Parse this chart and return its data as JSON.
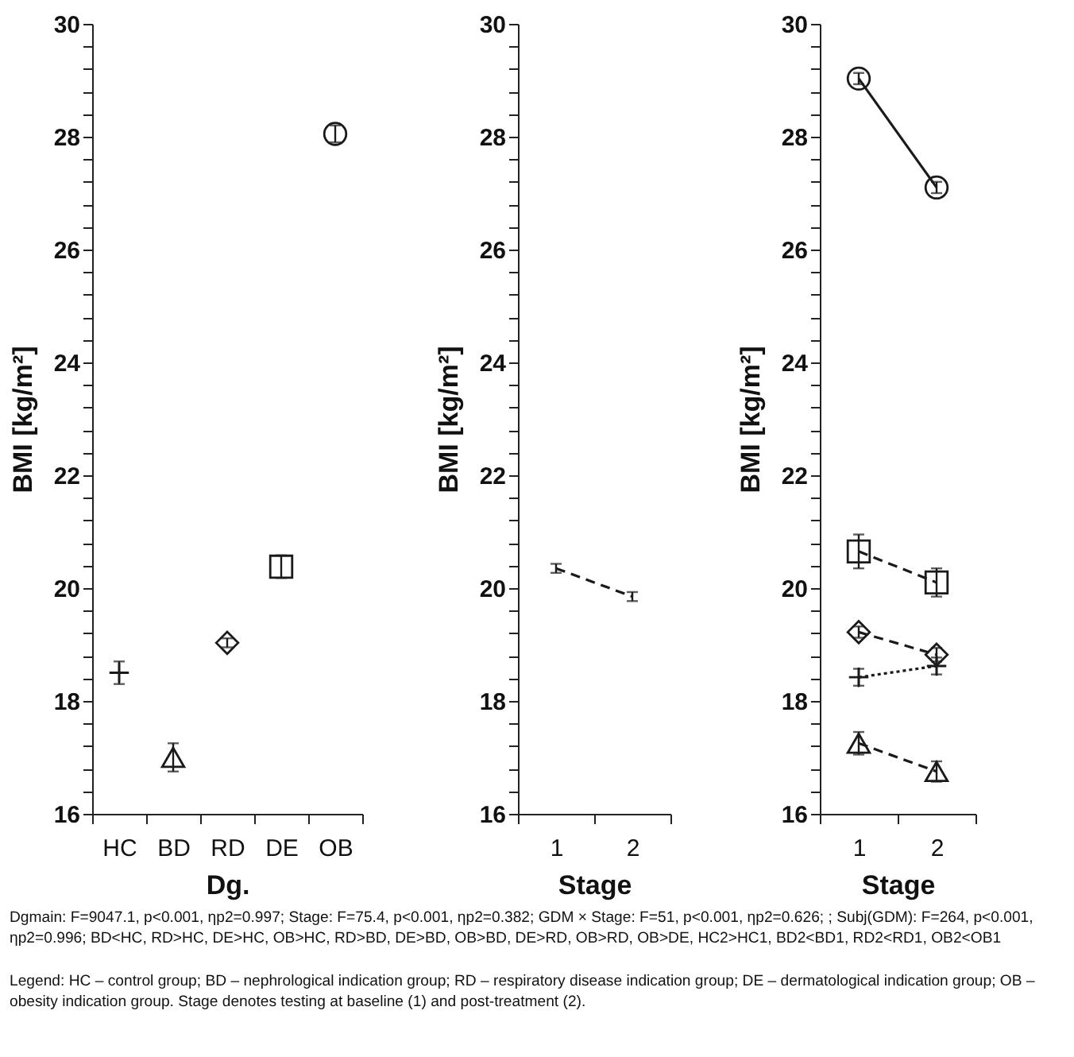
{
  "chart_data": [
    {
      "type": "scatter",
      "categories": [
        "HC",
        "BD",
        "RD",
        "DE",
        "OB"
      ],
      "xlabel": "Dg.",
      "ylabel": "BMI [kg/m²]",
      "ylim": [
        16,
        30
      ],
      "yticks": [
        16,
        {
          "value": 16.4,
          "label": null
        },
        {
          "value": 16.8,
          "label": null
        },
        {
          "value": 17.2,
          "label": null
        },
        {
          "value": 17.6,
          "label": null
        },
        18,
        {
          "value": 18.4,
          "label": null
        },
        {
          "value": 18.8,
          "label": null
        },
        {
          "value": 19.2,
          "label": null
        },
        {
          "value": 19.6,
          "label": null
        },
        20,
        {
          "value": 20.4,
          "label": null
        },
        {
          "value": 20.8,
          "label": null
        },
        {
          "value": 21.2,
          "label": null
        },
        {
          "value": 21.6,
          "label": null
        },
        22,
        {
          "value": 22.4,
          "label": null
        },
        {
          "value": 22.8,
          "label": null
        },
        {
          "value": 23.2,
          "label": null
        },
        {
          "value": 23.6,
          "label": null
        },
        24,
        {
          "value": 24.4,
          "label": null
        },
        {
          "value": 24.8,
          "label": null
        },
        {
          "value": 25.2,
          "label": null
        },
        {
          "value": 25.6,
          "label": null
        },
        26,
        {
          "value": 26.4,
          "label": null
        },
        {
          "value": 26.8,
          "label": null
        },
        {
          "value": 27.2,
          "label": null
        },
        {
          "value": 27.6,
          "label": null
        },
        28,
        {
          "value": 28.4,
          "label": null
        },
        {
          "value": 28.8,
          "label": null
        },
        {
          "value": 29.2,
          "label": null
        },
        {
          "value": 29.6,
          "label": null
        },
        30
      ],
      "series": [
        {
          "color": "#1a1a1a",
          "marker": "cross",
          "values": [
            18.5,
            null,
            null,
            null,
            null
          ],
          "errors": [
            0.2,
            null,
            null,
            null,
            null
          ]
        },
        {
          "color": "#1a1a1a",
          "marker": "triangle",
          "values": [
            null,
            17.0,
            null,
            null,
            null
          ],
          "errors": [
            null,
            0.25,
            null,
            null,
            null
          ]
        },
        {
          "color": "#1a1a1a",
          "marker": "diamond",
          "values": [
            null,
            null,
            19.03,
            null,
            null
          ],
          "errors": [
            null,
            null,
            0.08,
            null,
            null
          ]
        },
        {
          "color": "#1a1a1a",
          "marker": "square",
          "values": [
            null,
            null,
            null,
            20.38,
            null
          ],
          "errors": [
            null,
            null,
            null,
            0.2,
            null
          ]
        },
        {
          "color": "#1a1a1a",
          "marker": "circle",
          "values": [
            null,
            null,
            null,
            null,
            28.05
          ],
          "errors": [
            null,
            null,
            null,
            null,
            0.15
          ]
        }
      ],
      "annotations": [
        "Dgmain: F=9047.1, p<0.001, ηp2=0.997; Stage: F=75.4, p<0.001, ηp2=0.382; GDM × Stage: F=51, p<0.001, ηp2=0.626; ; Subj(GDM): F=264, p<0.001, ηp2=0.996; BD<HC, RD>HC, DE>HC, OB>HC, RD>BD, DE>BD, OB>BD, DE>RD, OB>RD, OB>DE, HC2>HC1, BD2<BD1, RD2<RD1, OB2<OB1",
        "Legend: HC – control group; BD – nephrological indication group; RD – respiratory disease indication group; DE – dermatological indication group; OB – obesity indication group. Stage denotes testing at baseline (1) and post-treatment (2)."
      ]
    },
    {
      "type": "line",
      "categories": [
        "1",
        "2"
      ],
      "xlabel": "Stage",
      "ylabel": "BMI [kg/m²]",
      "ylim": [
        16,
        30
      ],
      "yticks": [
        16,
        {
          "value": 16.4,
          "label": null
        },
        {
          "value": 16.8,
          "label": null
        },
        {
          "value": 17.2,
          "label": null
        },
        {
          "value": 17.6,
          "label": null
        },
        18,
        {
          "value": 18.4,
          "label": null
        },
        {
          "value": 18.8,
          "label": null
        },
        {
          "value": 19.2,
          "label": null
        },
        {
          "value": 19.6,
          "label": null
        },
        20,
        {
          "value": 20.4,
          "label": null
        },
        {
          "value": 20.8,
          "label": null
        },
        {
          "value": 21.2,
          "label": null
        },
        {
          "value": 21.6,
          "label": null
        },
        22,
        {
          "value": 22.4,
          "label": null
        },
        {
          "value": 22.8,
          "label": null
        },
        {
          "value": 23.2,
          "label": null
        },
        {
          "value": 23.6,
          "label": null
        },
        24,
        {
          "value": 24.4,
          "label": null
        },
        {
          "value": 24.8,
          "label": null
        },
        {
          "value": 25.2,
          "label": null
        },
        {
          "value": 25.6,
          "label": null
        },
        26,
        {
          "value": 26.4,
          "label": null
        },
        {
          "value": 26.8,
          "label": null
        },
        {
          "value": 27.2,
          "label": null
        },
        {
          "value": 27.6,
          "label": null
        },
        28,
        {
          "value": 28.4,
          "label": null
        },
        {
          "value": 28.8,
          "label": null
        },
        {
          "value": 29.2,
          "label": null
        },
        {
          "value": 29.6,
          "label": null
        },
        30
      ],
      "series": [
        {
          "color": "#1a1a1a",
          "marker": "none",
          "line_style": "dashed",
          "values": [
            20.35,
            19.85
          ],
          "errors": [
            0.08,
            0.08
          ]
        }
      ]
    },
    {
      "type": "line",
      "categories": [
        "1",
        "2"
      ],
      "xlabel": "Stage",
      "ylabel": "BMI [kg/m²]",
      "ylim": [
        16,
        30
      ],
      "yticks": [
        16,
        {
          "value": 16.4,
          "label": null
        },
        {
          "value": 16.8,
          "label": null
        },
        {
          "value": 17.2,
          "label": null
        },
        {
          "value": 17.6,
          "label": null
        },
        18,
        {
          "value": 18.4,
          "label": null
        },
        {
          "value": 18.8,
          "label": null
        },
        {
          "value": 19.2,
          "label": null
        },
        {
          "value": 19.6,
          "label": null
        },
        20,
        {
          "value": 20.4,
          "label": null
        },
        {
          "value": 20.8,
          "label": null
        },
        {
          "value": 21.2,
          "label": null
        },
        {
          "value": 21.6,
          "label": null
        },
        22,
        {
          "value": 22.4,
          "label": null
        },
        {
          "value": 22.8,
          "label": null
        },
        {
          "value": 23.2,
          "label": null
        },
        {
          "value": 23.6,
          "label": null
        },
        24,
        {
          "value": 24.4,
          "label": null
        },
        {
          "value": 24.8,
          "label": null
        },
        {
          "value": 25.2,
          "label": null
        },
        {
          "value": 25.6,
          "label": null
        },
        26,
        {
          "value": 26.4,
          "label": null
        },
        {
          "value": 26.8,
          "label": null
        },
        {
          "value": 27.2,
          "label": null
        },
        {
          "value": 27.6,
          "label": null
        },
        28,
        {
          "value": 28.4,
          "label": null
        },
        {
          "value": 28.8,
          "label": null
        },
        {
          "value": 29.2,
          "label": null
        },
        {
          "value": 29.6,
          "label": null
        },
        30
      ],
      "series": [
        {
          "color": "#1a1a1a",
          "marker": "circle",
          "line_style": "solid",
          "values": [
            29.03,
            27.1
          ],
          "errors": [
            0.1,
            0.1
          ]
        },
        {
          "color": "#1a1a1a",
          "marker": "square",
          "line_style": "dashed",
          "values": [
            20.65,
            20.1
          ],
          "errors": [
            0.3,
            0.25
          ]
        },
        {
          "color": "#1a1a1a",
          "marker": "diamond",
          "line_style": "dashed",
          "values": [
            19.22,
            18.82
          ],
          "errors": [
            0.1,
            0.12
          ]
        },
        {
          "color": "#1a1a1a",
          "marker": "cross",
          "line_style": "dotted",
          "values": [
            18.42,
            18.62
          ],
          "errors": [
            0.15,
            0.15
          ]
        },
        {
          "color": "#1a1a1a",
          "marker": "triangle",
          "line_style": "dashed",
          "values": [
            17.25,
            16.75
          ],
          "errors": [
            0.2,
            0.18
          ]
        }
      ]
    }
  ]
}
